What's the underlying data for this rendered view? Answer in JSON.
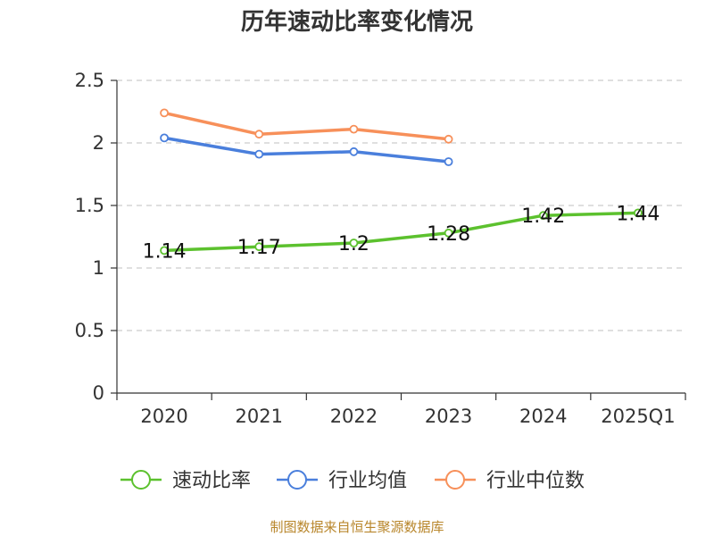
{
  "chart_data": {
    "type": "line",
    "title": "历年速动比率变化情况",
    "categories": [
      "2020",
      "2021",
      "2022",
      "2023",
      "2024",
      "2025Q1"
    ],
    "ylim": [
      0,
      2.5
    ],
    "yticks": [
      "0",
      "0.5",
      "1",
      "1.5",
      "2",
      "2.5"
    ],
    "grid": true,
    "legend_position": "bottom",
    "series": [
      {
        "name": "速动比率",
        "color": "#5cc12e",
        "values": [
          1.14,
          1.17,
          1.2,
          1.28,
          1.42,
          1.44
        ],
        "labels": [
          "1.14",
          "1.17",
          "1.2",
          "1.28",
          "1.42",
          "1.44"
        ]
      },
      {
        "name": "行业均值",
        "color": "#4a7fdc",
        "values": [
          2.04,
          1.91,
          1.93,
          1.85,
          null,
          null
        ]
      },
      {
        "name": "行业中位数",
        "color": "#f7905a",
        "values": [
          2.24,
          2.07,
          2.11,
          2.03,
          null,
          null
        ]
      }
    ]
  },
  "source_text": "制图数据来自恒生聚源数据库"
}
